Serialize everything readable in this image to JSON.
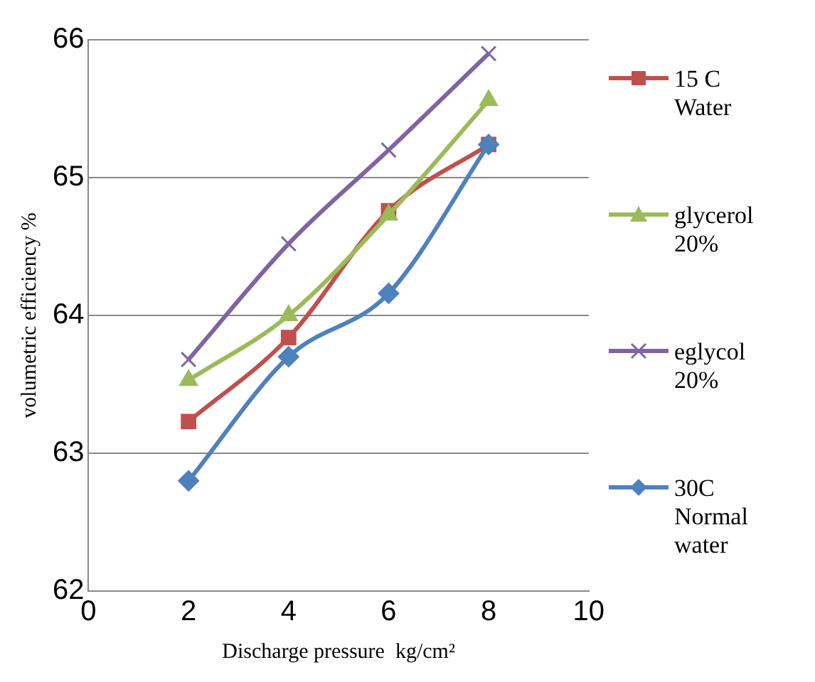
{
  "chart_data": {
    "type": "line",
    "xlabel": "Discharge pressure  kg/cm²",
    "ylabel": "volumetric efficiency %",
    "x": [
      2,
      4,
      6,
      8
    ],
    "xlim": [
      0,
      10
    ],
    "xticks": [
      0,
      2,
      4,
      6,
      8,
      10
    ],
    "ylim": [
      62,
      66
    ],
    "yticks": [
      62,
      63,
      64,
      65,
      66
    ],
    "grid": "y",
    "legend": "right",
    "series": [
      {
        "name": "15 C Water",
        "color": "#c0504d",
        "marker": "square",
        "values": [
          63.23,
          63.84,
          64.76,
          65.24
        ]
      },
      {
        "name": "glycerol 20%",
        "color": "#9bbb59",
        "marker": "triangle",
        "values": [
          63.53,
          64.0,
          64.73,
          65.56
        ]
      },
      {
        "name": "eglycol 20%",
        "color": "#8064a2",
        "marker": "cross",
        "values": [
          63.68,
          64.52,
          65.2,
          65.9
        ]
      },
      {
        "name": "30C Normal water",
        "color": "#4f81bd",
        "marker": "diamond",
        "values": [
          62.8,
          63.7,
          64.16,
          65.24
        ]
      }
    ]
  }
}
